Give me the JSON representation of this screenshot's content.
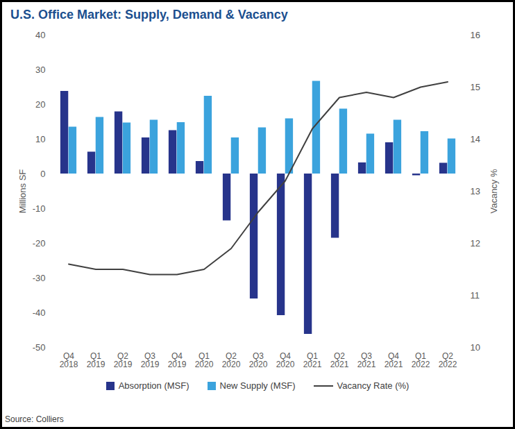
{
  "chart_data": {
    "type": "bar",
    "title": "U.S. Office Market: Supply, Demand & Vacancy",
    "source": "Source: Colliers",
    "categories": [
      "Q4 2018",
      "Q1 2019",
      "Q2 2019",
      "Q3 2019",
      "Q4 2019",
      "Q1 2020",
      "Q2 2020",
      "Q3 2020",
      "Q4 2020",
      "Q1 2021",
      "Q2 2021",
      "Q3 2021",
      "Q4 2021",
      "Q1 2022",
      "Q2 2022"
    ],
    "series": [
      {
        "name": "Absorption (MSF)",
        "type": "bar",
        "color": "#27348b",
        "values": [
          23.8,
          6.3,
          17.9,
          10.4,
          12.5,
          3.6,
          -13.5,
          -36,
          -40.8,
          -46.2,
          -18.5,
          3.2,
          9,
          -0.5,
          3.1
        ]
      },
      {
        "name": "New Supply (MSF)",
        "type": "bar",
        "color": "#3ba3dd",
        "values": [
          13.5,
          16.3,
          14.7,
          15.5,
          14.8,
          22.4,
          10.4,
          13.3,
          15.9,
          26.7,
          18.7,
          11.5,
          15.5,
          12.2,
          10.1
        ]
      },
      {
        "name": "Vacancy Rate (%)",
        "type": "line",
        "axis": "y2",
        "color": "#404040",
        "values": [
          11.6,
          11.5,
          11.5,
          11.4,
          11.4,
          11.5,
          11.9,
          12.6,
          13.2,
          14.2,
          14.8,
          14.9,
          14.8,
          15.0,
          15.1
        ]
      }
    ],
    "ylabel": "Millions SF",
    "y2label": "Vacancy %",
    "ylim": [
      -50,
      40
    ],
    "yticks": [
      -50,
      -40,
      -30,
      -20,
      -10,
      0,
      10,
      20,
      30,
      40
    ],
    "y2lim": [
      10,
      16
    ],
    "y2ticks": [
      10,
      11,
      12,
      13,
      14,
      15,
      16
    ],
    "legend": "bottom"
  }
}
